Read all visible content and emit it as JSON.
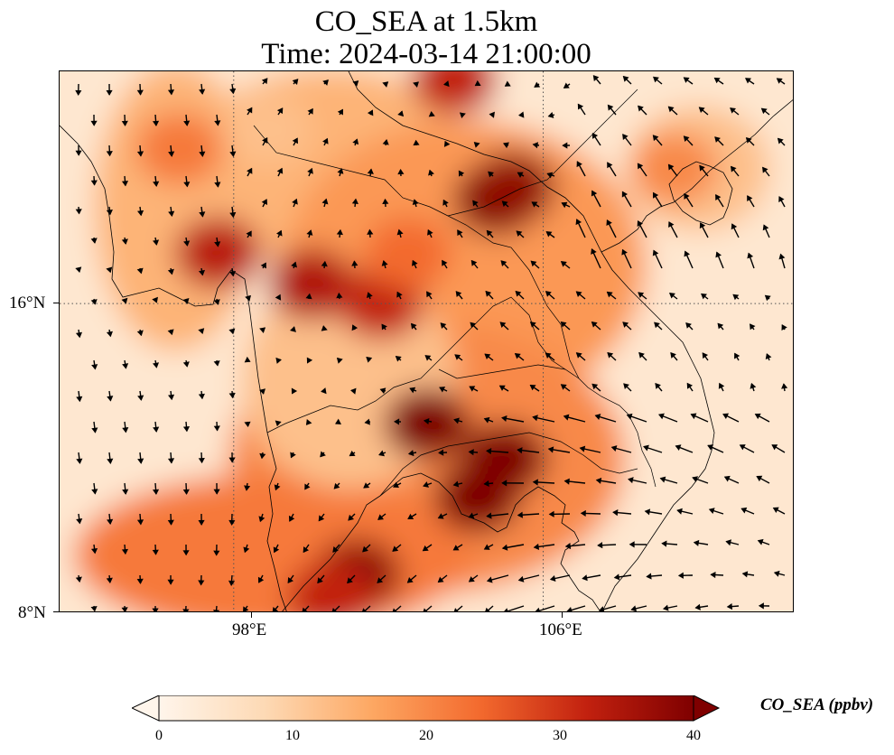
{
  "title": "CO_SEA at 1.5km",
  "subtitle": "Time: 2024-03-14 21:00:00",
  "colorbar": {
    "label": "CO_SEA (ppbv)",
    "min": 0,
    "max": 40,
    "ticks": [
      "0",
      "10",
      "20",
      "30",
      "40"
    ],
    "colors": [
      "#fff5eb",
      "#fdd9b4",
      "#fda762",
      "#f36a2e",
      "#c2210f",
      "#7f0000"
    ]
  },
  "map": {
    "lon_range": [
      93.5,
      112.5
    ],
    "lat_range": [
      8,
      22
    ],
    "lon_ticks": [
      {
        "value": 98,
        "label": "98°E"
      },
      {
        "value": 106,
        "label": "106°E"
      }
    ],
    "lat_ticks": [
      {
        "value": 16,
        "label": "16°N"
      },
      {
        "value": 8,
        "label": "8°N"
      }
    ],
    "gridlines": true,
    "field": "CO_SEA",
    "level": "1.5km",
    "hotspots_ppbv": [
      {
        "lon": 104.8,
        "lat": 18.7,
        "value": 40
      },
      {
        "lon": 105.2,
        "lat": 19.0,
        "value": 38
      },
      {
        "lon": 103.0,
        "lat": 12.9,
        "value": 42
      },
      {
        "lon": 104.3,
        "lat": 11.0,
        "value": 40
      },
      {
        "lon": 105.0,
        "lat": 12.0,
        "value": 40
      },
      {
        "lon": 101.2,
        "lat": 9.0,
        "value": 38
      },
      {
        "lon": 100.0,
        "lat": 16.5,
        "value": 34
      },
      {
        "lon": 101.8,
        "lat": 16.0,
        "value": 32
      },
      {
        "lon": 97.6,
        "lat": 17.3,
        "value": 33
      },
      {
        "lon": 100.5,
        "lat": 8.4,
        "value": 32
      },
      {
        "lon": 103.7,
        "lat": 21.8,
        "value": 32
      },
      {
        "lon": 102.5,
        "lat": 17.3,
        "value": 24
      },
      {
        "lon": 96.6,
        "lat": 20.0,
        "value": 22
      },
      {
        "lon": 109.4,
        "lat": 19.5,
        "value": 20
      },
      {
        "lon": 98.9,
        "lat": 20.5,
        "value": 12
      }
    ]
  }
}
